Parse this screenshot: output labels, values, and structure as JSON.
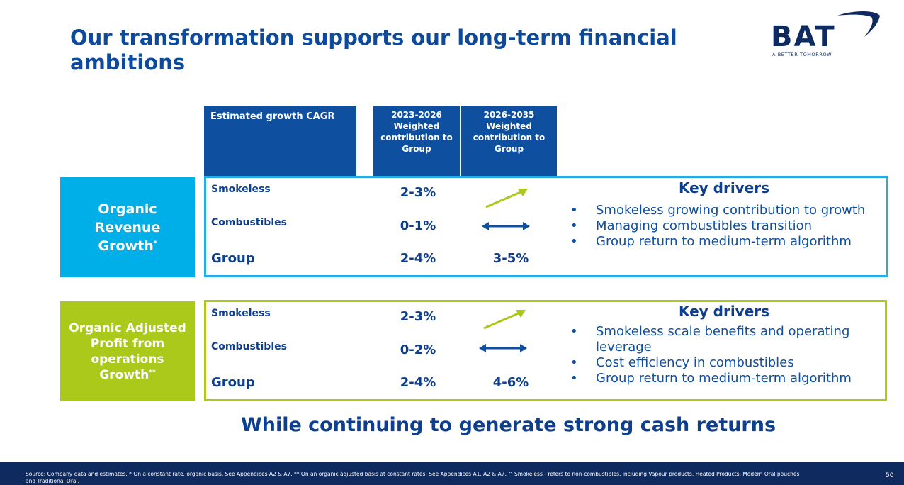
{
  "title": "Our transformation supports our long-term financial ambitions",
  "logo": {
    "name": "BAT",
    "tagline": "A BETTER TOMORROW"
  },
  "table_header": {
    "main": "Estimated growth CAGR",
    "col1": "2023-2026 Weighted contribution to Group",
    "col2": "2026-2035 Weighted contribution to Group"
  },
  "revenue": {
    "label": "Organic Revenue Growth",
    "label_mark": "*",
    "rows": [
      {
        "label": "Smokeless",
        "value": "2-3%",
        "trend_icon": "arrow-up-right-icon"
      },
      {
        "label": "Combustibles",
        "value": "0-1%",
        "trend_icon": "arrow-left-right-icon"
      },
      {
        "label": "Group",
        "value": "2-4%",
        "long_term": "3-5%"
      }
    ],
    "drivers_title": "Key drivers",
    "drivers": [
      "Smokeless growing contribution to growth",
      "Managing combustibles transition",
      "Group return to medium-term algorithm"
    ]
  },
  "profit": {
    "label": "Organic Adjusted Profit from operations Growth",
    "label_mark": "**",
    "rows": [
      {
        "label": "Smokeless",
        "value": "2-3%",
        "trend_icon": "arrow-up-right-icon"
      },
      {
        "label": "Combustibles",
        "value": "0-2%",
        "trend_icon": "arrow-left-right-icon"
      },
      {
        "label": "Group",
        "value": "2-4%",
        "long_term": "4-6%"
      }
    ],
    "drivers_title": "Key drivers",
    "drivers": [
      "Smokeless scale benefits and operating leverage",
      "Cost efficiency in combustibles",
      "Group return to medium-term algorithm"
    ]
  },
  "tagline": "While continuing to generate strong cash returns",
  "footer": {
    "source": "Source: Company data and estimates. * On a constant rate, organic basis. See Appendices A2 & A7. ** On an organic adjusted basis at constant rates. See Appendices A1, A2 & A7. ^ Smokeless - refers to non-combustibles, including Vapour products, Heated Products, Modern Oral pouches and Traditional Oral.",
    "page": "50"
  },
  "colors": {
    "navy": "#0e2a5e",
    "blue": "#0e4fa0",
    "cyan": "#00aee8",
    "lime": "#aac91a"
  }
}
